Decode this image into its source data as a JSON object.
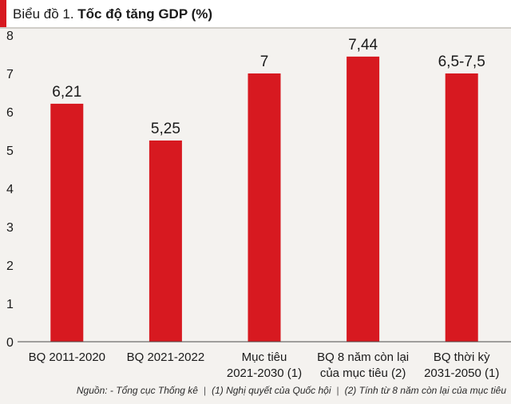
{
  "header": {
    "prefix": "Biểu đồ 1. ",
    "title": "Tốc độ tăng GDP (%)"
  },
  "chart_data": {
    "type": "bar",
    "title": "Tốc độ tăng GDP (%)",
    "xlabel": "",
    "ylabel": "",
    "ylim": [
      0,
      8
    ],
    "yticks": [
      0,
      1,
      2,
      3,
      4,
      5,
      6,
      7,
      8
    ],
    "grid": false,
    "categories": [
      [
        "BQ 2011-2020"
      ],
      [
        "BQ 2021-2022"
      ],
      [
        "Mục tiêu",
        "2021-2030 (1)"
      ],
      [
        "BQ 8 năm còn lại",
        "của mục tiêu (2)"
      ],
      [
        "BQ thời kỳ",
        "2031-2050 (1)"
      ]
    ],
    "values": [
      6.21,
      5.25,
      7,
      7.44,
      7
    ],
    "data_labels": [
      "6,21",
      "5,25",
      "7",
      "7,44",
      "6,5-7,5"
    ],
    "bar_color": "#d71920"
  },
  "footer": {
    "source": "Nguồn: - Tổng cục Thống kê",
    "note1": "(1) Nghị quyết của Quốc hội",
    "note2": "(2) Tính từ 8 năm còn lại của mục tiêu",
    "separator": "|"
  }
}
